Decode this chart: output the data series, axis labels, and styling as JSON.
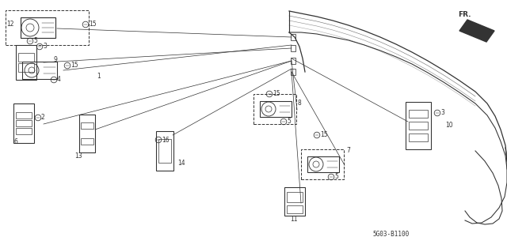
{
  "bg_color": "#ffffff",
  "line_color": "#333333",
  "diagram_ref": "5G03-B1100",
  "body_x": [
    3.65,
    3.8,
    4.0,
    4.2,
    4.4,
    4.6,
    4.8,
    5.0,
    5.2,
    5.4,
    5.6,
    5.8,
    6.0,
    6.15,
    6.25,
    6.32,
    6.38,
    6.4
  ],
  "body_y_top": [
    3.05,
    3.02,
    2.98,
    2.93,
    2.87,
    2.8,
    2.72,
    2.63,
    2.53,
    2.42,
    2.3,
    2.17,
    2.03,
    1.88,
    1.72,
    1.55,
    1.35,
    1.15
  ],
  "body_y_bot": [
    2.78,
    2.78,
    2.76,
    2.72,
    2.68,
    2.62,
    2.55,
    2.47,
    2.38,
    2.27,
    2.15,
    2.02,
    1.88,
    1.73,
    1.57,
    1.4,
    1.22,
    1.05
  ],
  "leader_lines": [
    [
      0.72,
      2.83,
      3.68,
      2.72
    ],
    [
      0.8,
      2.3,
      3.68,
      2.62
    ],
    [
      0.55,
      2.4,
      3.68,
      2.58
    ],
    [
      0.55,
      1.62,
      3.68,
      2.42
    ],
    [
      1.2,
      1.55,
      3.68,
      2.42
    ],
    [
      2.18,
      1.48,
      3.68,
      2.32
    ],
    [
      3.75,
      1.8,
      3.68,
      2.42
    ],
    [
      4.35,
      1.1,
      3.68,
      2.28
    ],
    [
      5.15,
      1.65,
      3.68,
      2.45
    ],
    [
      3.8,
      0.62,
      3.68,
      2.28
    ]
  ]
}
